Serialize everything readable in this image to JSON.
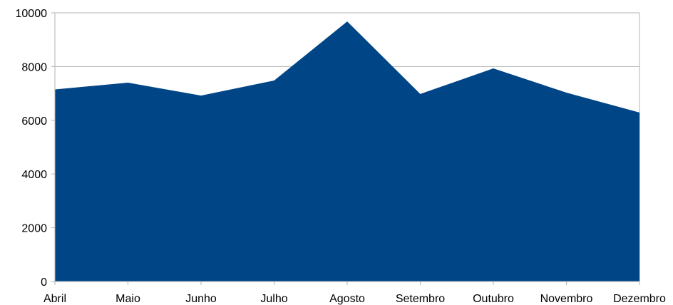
{
  "chart_data": {
    "type": "area",
    "categories": [
      "Abril",
      "Maio",
      "Junho",
      "Julho",
      "Agosto",
      "Setembro",
      "Outubro",
      "Novembro",
      "Dezembro"
    ],
    "values": [
      7150,
      7400,
      6920,
      7480,
      9680,
      6980,
      7930,
      7030,
      6290
    ],
    "color": "#004586",
    "ylim": [
      0,
      10000
    ],
    "yticks": [
      0,
      2000,
      4000,
      6000,
      8000,
      10000
    ],
    "grid": true
  }
}
